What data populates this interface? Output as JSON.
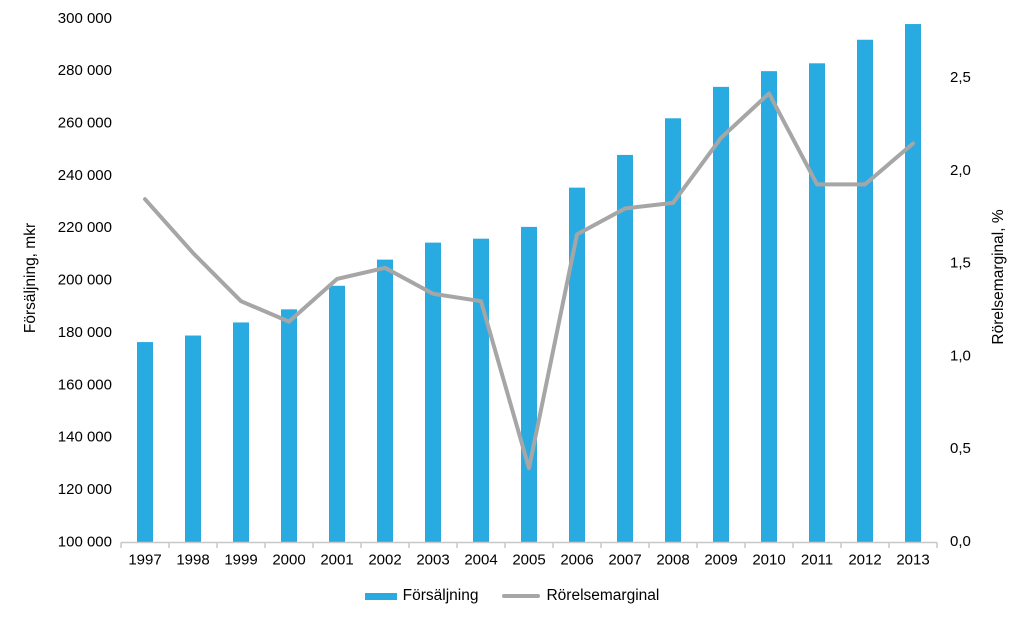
{
  "chart_data": {
    "type": "bar",
    "subtype": "combo-bar-line",
    "title": "",
    "categories": [
      "1997",
      "1998",
      "1999",
      "2000",
      "2001",
      "2002",
      "2003",
      "2004",
      "2005",
      "2006",
      "2007",
      "2008",
      "2009",
      "2010",
      "2011",
      "2012",
      "2013"
    ],
    "series": [
      {
        "name": "Försäljning",
        "type": "bar",
        "axis": "left",
        "color": "#29ABE2",
        "values": [
          176000,
          178500,
          183500,
          188500,
          197500,
          207500,
          214000,
          215500,
          220000,
          235000,
          247500,
          261500,
          273500,
          279500,
          282500,
          291500,
          297500
        ]
      },
      {
        "name": "Rörelsemarginal",
        "type": "line",
        "axis": "right",
        "color": "#A6A6A6",
        "values": [
          1.84,
          1.55,
          1.29,
          1.18,
          1.41,
          1.47,
          1.33,
          1.29,
          0.39,
          1.65,
          1.79,
          1.82,
          2.17,
          2.41,
          1.92,
          1.92,
          2.14
        ]
      }
    ],
    "left_axis": {
      "title": "Försäljning, mkr",
      "min": 100000,
      "max": 300000,
      "tick_step": 20000,
      "tick_values": [
        100000,
        120000,
        140000,
        160000,
        180000,
        200000,
        220000,
        240000,
        260000,
        280000,
        300000
      ],
      "tick_labels": [
        "100 000",
        "120 000",
        "140 000",
        "160 000",
        "180 000",
        "200 000",
        "220 000",
        "240 000",
        "260 000",
        "280 000",
        "300 000"
      ]
    },
    "right_axis": {
      "title": "Rörelsemarginal, %",
      "min": 0.0,
      "max": 2.5,
      "tick_step": 0.5,
      "tick_values": [
        0.0,
        0.5,
        1.0,
        1.5,
        2.0,
        2.5
      ],
      "tick_labels": [
        "0,0",
        "0,5",
        "1,0",
        "1,5",
        "2,0",
        "2,5"
      ]
    },
    "grid": false,
    "legend_position": "bottom",
    "axis_line_color": "#C8C8C8",
    "legend": {
      "items": [
        {
          "label": "Försäljning",
          "swatch": "bar",
          "color": "#29ABE2"
        },
        {
          "label": "Rörelsemarginal",
          "swatch": "line",
          "color": "#A6A6A6"
        }
      ]
    }
  }
}
